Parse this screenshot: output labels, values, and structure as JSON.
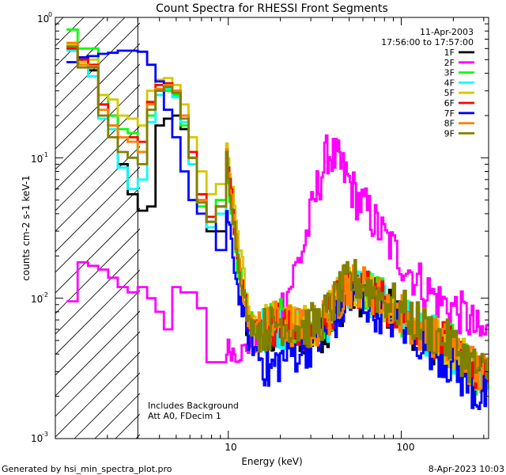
{
  "chart_data": {
    "type": "line",
    "title": "Count Spectra for RHESSI Front Segments",
    "xlabel": "Energy (keV)",
    "ylabel": "counts cm-2 s-1 keV-1",
    "xscale": "log",
    "yscale": "log",
    "xlim": [
      1,
      320
    ],
    "ylim": [
      0.001,
      1.0
    ],
    "x_tick_labels": [
      "10",
      "100"
    ],
    "y_tick_labels": [
      "10",
      "10",
      "10",
      "10"
    ],
    "y_tick_exponents": [
      "0",
      "-1",
      "-2",
      "-3"
    ],
    "date": "11-Apr-2003",
    "time_range": "17:56:00 to 17:57:00",
    "note_lines": [
      "Includes Background",
      "Att A0, FDecim 1"
    ],
    "excluded_region_max_kev": 3,
    "footer_left": "Generated by hsi_min_spectra_plot.pro",
    "footer_right": "8-Apr-2023 10:03",
    "series": [
      {
        "name": "1F",
        "color": "#000000",
        "x": [
          1.25,
          1.45,
          1.65,
          1.9,
          2.15,
          2.45,
          2.8,
          3.2,
          3.6,
          4.0,
          4.5,
          5.0,
          5.6,
          6.2,
          7.0,
          8.0,
          9.0,
          10.5,
          12,
          14,
          16,
          18,
          20,
          25,
          30,
          35,
          40,
          45,
          50,
          60,
          70,
          80,
          100,
          120,
          150,
          180,
          220,
          260,
          300
        ],
        "values": [
          0.62,
          0.52,
          0.42,
          0.24,
          0.2,
          0.09,
          0.055,
          0.042,
          0.045,
          0.17,
          0.19,
          0.2,
          0.16,
          0.1,
          0.05,
          0.03,
          0.03,
          0.095,
          0.02,
          0.005,
          0.006,
          0.005,
          0.006,
          0.006,
          0.0055,
          0.0055,
          0.0065,
          0.008,
          0.01,
          0.011,
          0.01,
          0.009,
          0.008,
          0.0065,
          0.0055,
          0.0045,
          0.004,
          0.0032,
          0.0025
        ]
      },
      {
        "name": "2F",
        "color": "#ff00ff",
        "x": [
          1.25,
          1.45,
          1.65,
          1.9,
          2.15,
          2.45,
          2.8,
          3.2,
          3.6,
          4.0,
          4.5,
          5.0,
          5.6,
          6.2,
          7.0,
          8.0,
          9.0,
          10.5,
          12,
          14,
          16,
          18,
          20,
          25,
          30,
          35,
          40,
          45,
          50,
          60,
          70,
          80,
          100,
          120,
          150,
          180,
          220,
          260,
          300
        ],
        "values": [
          0.0095,
          0.018,
          0.017,
          0.016,
          0.014,
          0.012,
          0.011,
          0.012,
          0.01,
          0.008,
          0.006,
          0.012,
          0.011,
          0.011,
          0.0085,
          0.0035,
          0.0035,
          0.0045,
          0.004,
          0.0045,
          0.005,
          0.006,
          0.007,
          0.012,
          0.025,
          0.06,
          0.11,
          0.095,
          0.075,
          0.052,
          0.04,
          0.03,
          0.022,
          0.016,
          0.012,
          0.0095,
          0.0085,
          0.0072,
          0.0055
        ]
      },
      {
        "name": "3F",
        "color": "#00ff00",
        "x": [
          1.25,
          1.45,
          1.65,
          1.9,
          2.15,
          2.45,
          2.8,
          3.2,
          3.6,
          4.0,
          4.5,
          5.0,
          5.6,
          6.2,
          7.0,
          8.0,
          9.0,
          10.5,
          12,
          14,
          16,
          18,
          20,
          25,
          30,
          35,
          40,
          45,
          50,
          60,
          70,
          80,
          100,
          120,
          150,
          180,
          220,
          260,
          300
        ],
        "values": [
          0.82,
          0.6,
          0.6,
          0.28,
          0.2,
          0.16,
          0.15,
          0.11,
          0.2,
          0.28,
          0.3,
          0.28,
          0.17,
          0.09,
          0.045,
          0.035,
          0.05,
          0.09,
          0.018,
          0.007,
          0.006,
          0.006,
          0.007,
          0.0065,
          0.006,
          0.0065,
          0.0075,
          0.0095,
          0.012,
          0.013,
          0.011,
          0.01,
          0.0085,
          0.007,
          0.006,
          0.005,
          0.0045,
          0.0035,
          0.0028
        ]
      },
      {
        "name": "4F",
        "color": "#00ffff",
        "x": [
          1.25,
          1.45,
          1.65,
          1.9,
          2.15,
          2.45,
          2.8,
          3.2,
          3.6,
          4.0,
          4.5,
          5.0,
          5.6,
          6.2,
          7.0,
          8.0,
          9.0,
          10.5,
          12,
          14,
          16,
          18,
          20,
          25,
          30,
          35,
          40,
          45,
          50,
          60,
          70,
          80,
          100,
          120,
          150,
          180,
          220,
          260,
          300
        ],
        "values": [
          0.58,
          0.48,
          0.38,
          0.19,
          0.16,
          0.085,
          0.06,
          0.07,
          0.18,
          0.28,
          0.31,
          0.27,
          0.18,
          0.09,
          0.05,
          0.032,
          0.04,
          0.1,
          0.02,
          0.0065,
          0.006,
          0.006,
          0.0065,
          0.006,
          0.0058,
          0.006,
          0.007,
          0.009,
          0.011,
          0.012,
          0.0105,
          0.0095,
          0.0082,
          0.0068,
          0.0058,
          0.0048,
          0.0042,
          0.0034,
          0.0027
        ]
      },
      {
        "name": "5F",
        "color": "#d4c800",
        "x": [
          1.25,
          1.45,
          1.65,
          1.9,
          2.15,
          2.45,
          2.8,
          3.2,
          3.6,
          4.0,
          4.5,
          5.0,
          5.6,
          6.2,
          7.0,
          8.0,
          9.0,
          10.5,
          12,
          14,
          16,
          18,
          20,
          25,
          30,
          35,
          40,
          45,
          50,
          60,
          70,
          80,
          100,
          120,
          150,
          180,
          220,
          260,
          300
        ],
        "values": [
          0.64,
          0.48,
          0.5,
          0.28,
          0.26,
          0.2,
          0.19,
          0.17,
          0.3,
          0.36,
          0.37,
          0.33,
          0.24,
          0.14,
          0.08,
          0.055,
          0.065,
          0.11,
          0.03,
          0.008,
          0.0065,
          0.0065,
          0.007,
          0.0065,
          0.0062,
          0.0065,
          0.0078,
          0.0098,
          0.012,
          0.013,
          0.0115,
          0.0102,
          0.0088,
          0.0072,
          0.006,
          0.005,
          0.0044,
          0.0036,
          0.003
        ]
      },
      {
        "name": "6F",
        "color": "#ff0000",
        "x": [
          1.25,
          1.45,
          1.65,
          1.9,
          2.15,
          2.45,
          2.8,
          3.2,
          3.6,
          4.0,
          4.5,
          5.0,
          5.6,
          6.2,
          7.0,
          8.0,
          9.0,
          10.5,
          12,
          14,
          16,
          18,
          20,
          25,
          30,
          35,
          40,
          45,
          50,
          60,
          70,
          80,
          100,
          120,
          150,
          180,
          220,
          260,
          300
        ],
        "values": [
          0.6,
          0.5,
          0.46,
          0.24,
          0.17,
          0.14,
          0.14,
          0.13,
          0.25,
          0.33,
          0.34,
          0.3,
          0.2,
          0.11,
          0.055,
          0.038,
          0.045,
          0.1,
          0.022,
          0.007,
          0.006,
          0.006,
          0.0068,
          0.0062,
          0.006,
          0.0062,
          0.0075,
          0.0095,
          0.0115,
          0.0125,
          0.011,
          0.0098,
          0.0085,
          0.007,
          0.0058,
          0.0048,
          0.0043,
          0.0035,
          0.0028
        ]
      },
      {
        "name": "7F",
        "color": "#0000ff",
        "x": [
          1.25,
          1.45,
          1.65,
          1.9,
          2.15,
          2.45,
          2.8,
          3.2,
          3.6,
          4.0,
          4.5,
          5.0,
          5.6,
          6.2,
          7.0,
          8.0,
          9.0,
          10.5,
          12,
          14,
          16,
          18,
          20,
          25,
          30,
          35,
          40,
          45,
          50,
          60,
          70,
          80,
          100,
          120,
          150,
          180,
          220,
          260,
          300
        ],
        "values": [
          0.48,
          0.52,
          0.53,
          0.55,
          0.56,
          0.58,
          0.58,
          0.57,
          0.46,
          0.35,
          0.22,
          0.14,
          0.08,
          0.05,
          0.04,
          0.035,
          0.022,
          0.04,
          0.012,
          0.005,
          0.004,
          0.003,
          0.0035,
          0.004,
          0.0045,
          0.005,
          0.006,
          0.0075,
          0.009,
          0.01,
          0.009,
          0.008,
          0.007,
          0.0058,
          0.0048,
          0.004,
          0.0032,
          0.0025,
          0.002
        ]
      },
      {
        "name": "8F",
        "color": "#ff8000",
        "x": [
          1.25,
          1.45,
          1.65,
          1.9,
          2.15,
          2.45,
          2.8,
          3.2,
          3.6,
          4.0,
          4.5,
          5.0,
          5.6,
          6.2,
          7.0,
          8.0,
          9.0,
          10.5,
          12,
          14,
          16,
          18,
          20,
          25,
          30,
          35,
          40,
          45,
          50,
          60,
          70,
          80,
          100,
          120,
          150,
          180,
          220,
          260,
          300
        ],
        "values": [
          0.66,
          0.46,
          0.45,
          0.22,
          0.17,
          0.14,
          0.13,
          0.11,
          0.24,
          0.31,
          0.33,
          0.3,
          0.2,
          0.1,
          0.05,
          0.035,
          0.045,
          0.1,
          0.02,
          0.0068,
          0.006,
          0.006,
          0.0068,
          0.0063,
          0.006,
          0.0063,
          0.0076,
          0.0096,
          0.0118,
          0.0128,
          0.0112,
          0.01,
          0.0086,
          0.0071,
          0.0059,
          0.0049,
          0.0044,
          0.0036,
          0.0029
        ]
      },
      {
        "name": "9F",
        "color": "#808000",
        "x": [
          1.25,
          1.45,
          1.65,
          1.9,
          2.15,
          2.45,
          2.8,
          3.2,
          3.6,
          4.0,
          4.5,
          5.0,
          5.6,
          6.2,
          7.0,
          8.0,
          9.0,
          10.5,
          12,
          14,
          16,
          18,
          20,
          25,
          30,
          35,
          40,
          45,
          50,
          60,
          70,
          80,
          100,
          120,
          150,
          180,
          220,
          260,
          300
        ],
        "values": [
          0.62,
          0.44,
          0.44,
          0.2,
          0.14,
          0.11,
          0.1,
          0.09,
          0.22,
          0.3,
          0.32,
          0.29,
          0.19,
          0.1,
          0.048,
          0.035,
          0.045,
          0.1,
          0.02,
          0.0065,
          0.006,
          0.006,
          0.0068,
          0.0065,
          0.0062,
          0.0066,
          0.008,
          0.01,
          0.0125,
          0.0135,
          0.0118,
          0.0105,
          0.009,
          0.0074,
          0.0062,
          0.0052,
          0.0046,
          0.0037,
          0.003
        ]
      }
    ]
  }
}
